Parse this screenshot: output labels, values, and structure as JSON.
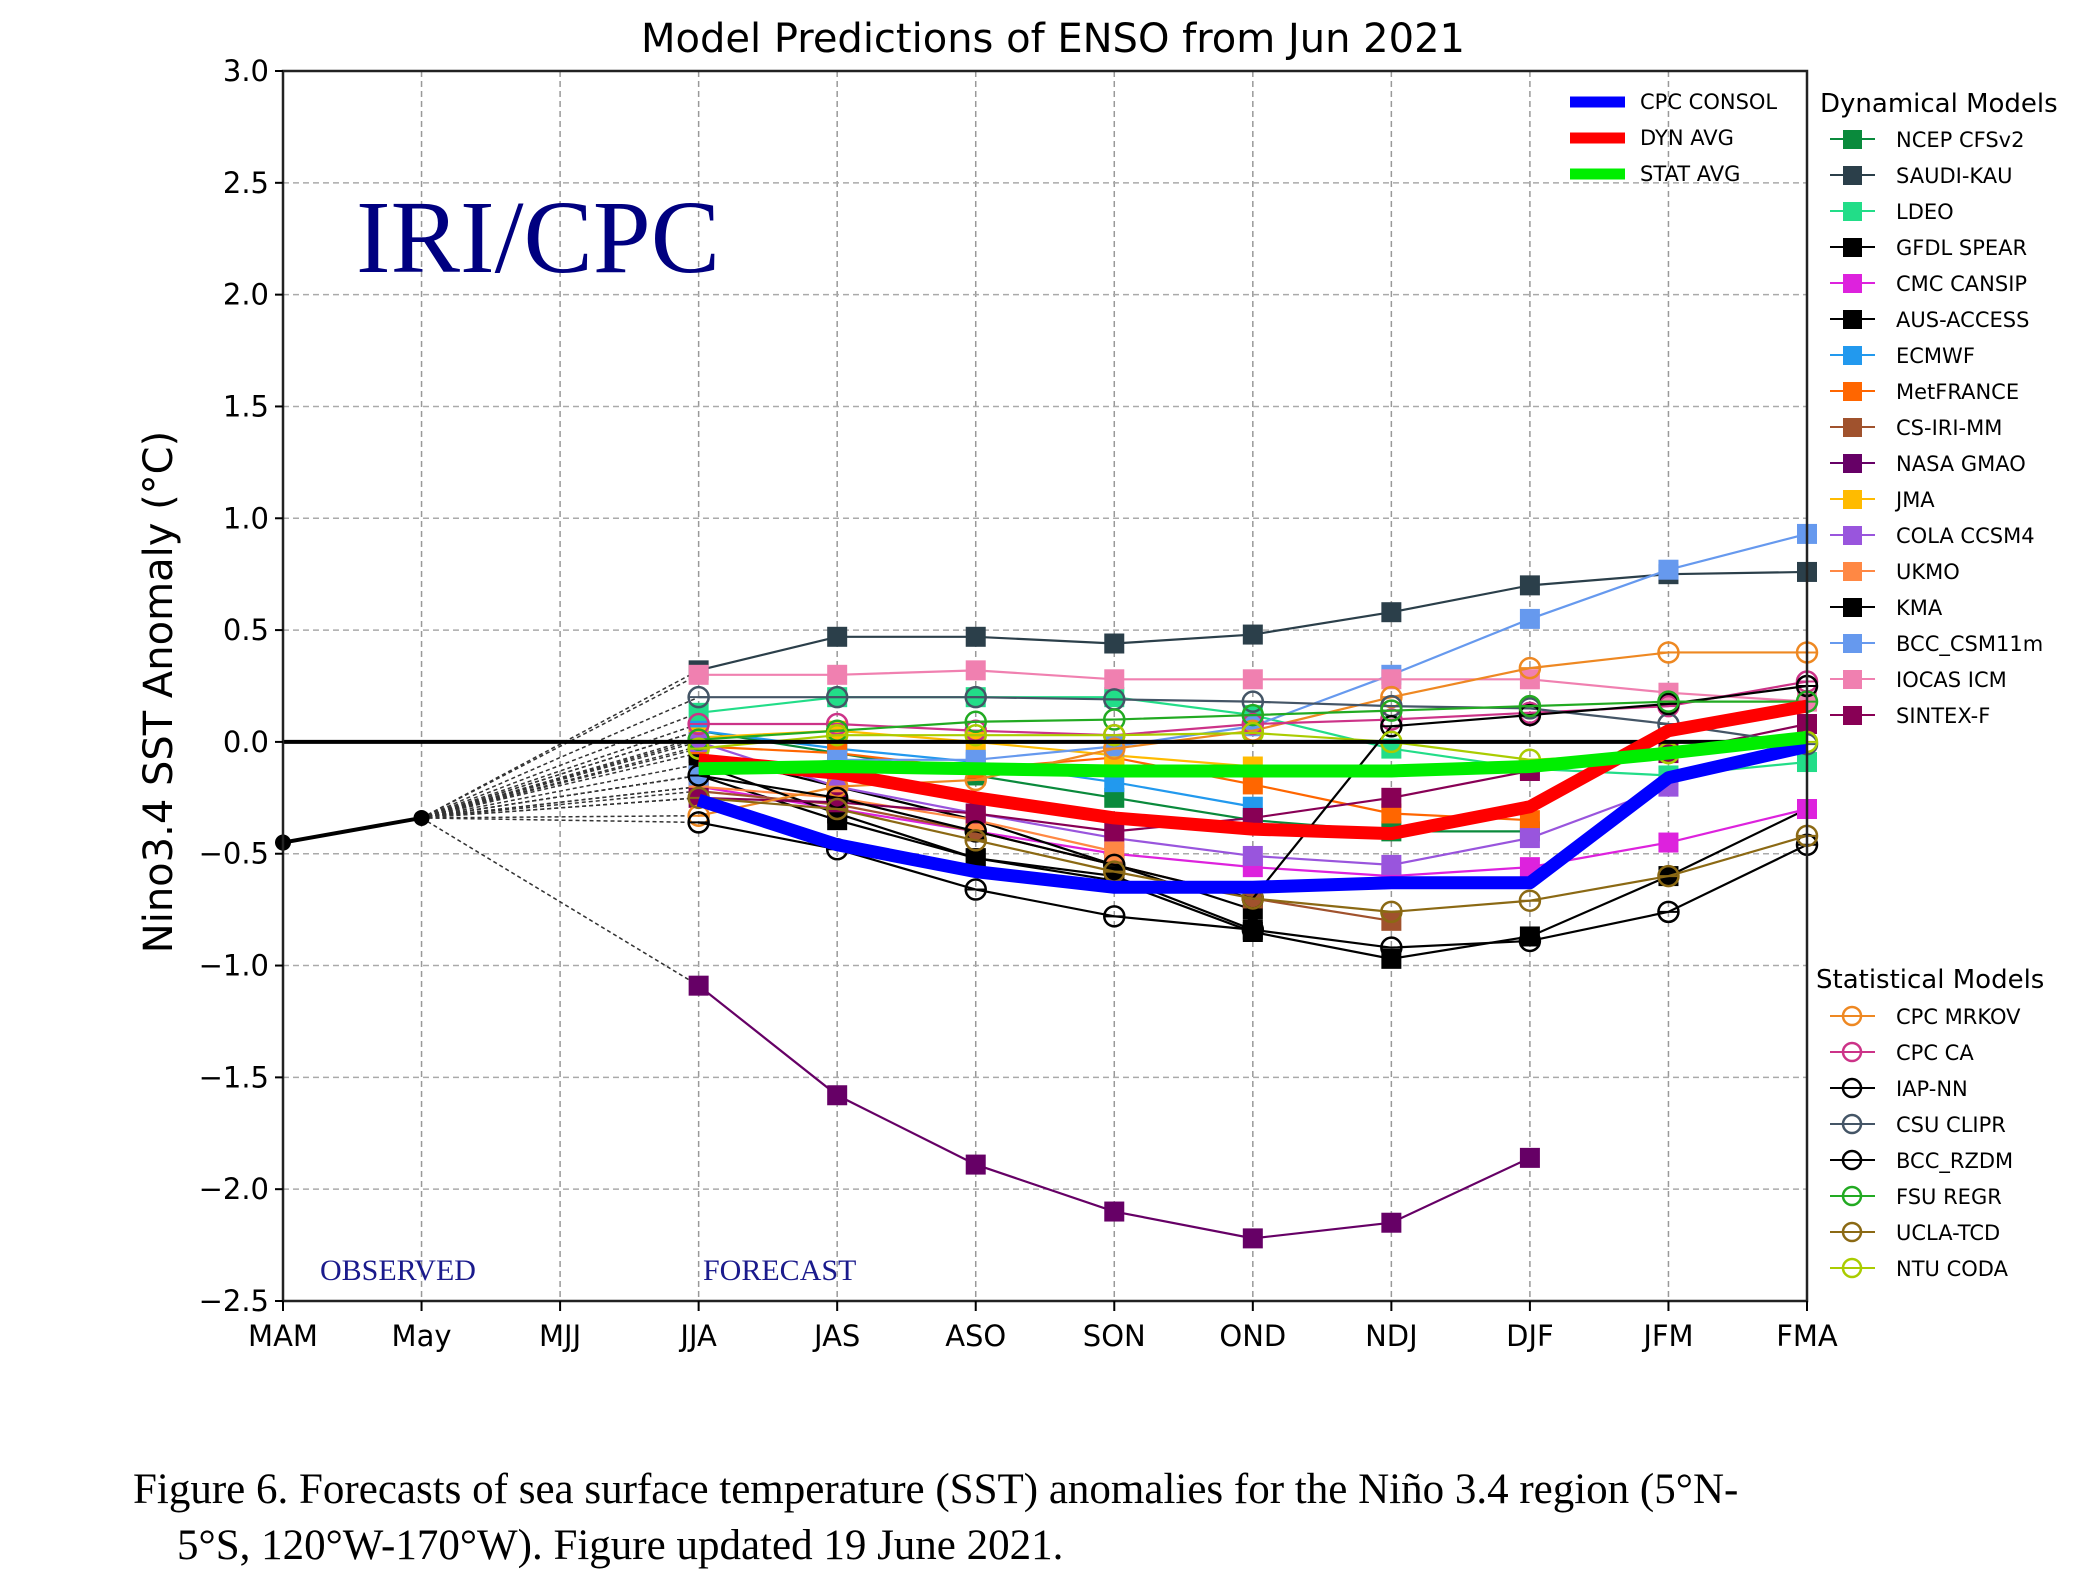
{
  "chart_data": {
    "type": "line",
    "title": "Model Predictions of ENSO from Jun 2021",
    "watermark": "IRI/CPC",
    "xlabel": "",
    "ylabel": "Nino3.4 SST Anomaly (°C)",
    "x": [
      "MAM",
      "May",
      "MJJ",
      "JJA",
      "JAS",
      "ASO",
      "SON",
      "OND",
      "NDJ",
      "DJF",
      "JFM",
      "FMA"
    ],
    "ylim": [
      -2.5,
      3.0
    ],
    "yticks": [
      -2.5,
      -2.0,
      -1.5,
      -1.0,
      -0.5,
      0.0,
      0.5,
      1.0,
      1.5,
      2.0,
      2.5,
      3.0
    ],
    "ytick_labels": [
      "−2.5",
      "−2.0",
      "−1.5",
      "−1.0",
      "−0.5",
      "0.0",
      "0.5",
      "1.0",
      "1.5",
      "2.0",
      "2.5",
      "3.0"
    ],
    "grid": true,
    "zero_line": true,
    "annotations": {
      "observed": "OBSERVED",
      "forecast": "FORECAST"
    },
    "observed": {
      "name": "Observed",
      "color": "#000000",
      "x_index": [
        0,
        1
      ],
      "values": [
        -0.45,
        -0.34
      ]
    },
    "summary_legend": {
      "placement": "top-right inside",
      "items": [
        {
          "name": "CPC CONSOL",
          "color": "#0000ff"
        },
        {
          "name": "DYN AVG",
          "color": "#ff0000"
        },
        {
          "name": "STAT AVG",
          "color": "#00ee00"
        }
      ]
    },
    "summary_series": [
      {
        "name": "CPC CONSOL",
        "color": "#0000ff",
        "start": 3,
        "values": [
          -0.26,
          -0.46,
          -0.58,
          -0.65,
          -0.65,
          -0.63,
          -0.63,
          -0.16,
          -0.02
        ]
      },
      {
        "name": "DYN AVG",
        "color": "#ff0000",
        "start": 3,
        "values": [
          -0.08,
          -0.14,
          -0.25,
          -0.34,
          -0.39,
          -0.41,
          -0.29,
          0.05,
          0.16
        ]
      },
      {
        "name": "STAT AVG",
        "color": "#00ee00",
        "start": 3,
        "values": [
          -0.12,
          -0.11,
          -0.12,
          -0.13,
          -0.13,
          -0.13,
          -0.11,
          -0.05,
          0.02
        ]
      }
    ],
    "dynamical_models_title": "Dynamical Models",
    "dynamical_models": [
      {
        "name": "NCEP CFSv2",
        "color": "#0a8a3c",
        "start": 3,
        "values": [
          0.05,
          -0.05,
          -0.15,
          -0.25,
          -0.35,
          -0.4,
          -0.4,
          null,
          null
        ]
      },
      {
        "name": "SAUDI-KAU",
        "color": "#2b3f4a",
        "start": 3,
        "values": [
          0.32,
          0.47,
          0.47,
          0.44,
          0.48,
          0.58,
          0.7,
          0.75,
          0.76
        ]
      },
      {
        "name": "LDEO",
        "color": "#22dd88",
        "start": 3,
        "values": [
          0.13,
          0.2,
          0.2,
          0.2,
          0.12,
          -0.03,
          -0.12,
          -0.15,
          -0.09
        ]
      },
      {
        "name": "GFDL SPEAR",
        "color": "#000000",
        "start": 3,
        "values": [
          -0.15,
          -0.35,
          -0.52,
          -0.62,
          -0.85,
          -0.97,
          -0.87,
          -0.6,
          -0.3
        ]
      },
      {
        "name": "CMC CANSIP",
        "color": "#dd22dd",
        "start": 3,
        "values": [
          -0.2,
          -0.3,
          -0.4,
          -0.5,
          -0.56,
          -0.6,
          -0.56,
          -0.45,
          -0.3
        ]
      },
      {
        "name": "AUS-ACCESS",
        "color": "#000000",
        "start": 3,
        "values": [
          -0.05,
          -0.2,
          -0.35,
          -0.55,
          -0.75,
          null,
          null,
          null,
          null
        ]
      },
      {
        "name": "ECMWF",
        "color": "#2299ee",
        "start": 3,
        "values": [
          0.05,
          -0.03,
          -0.09,
          -0.18,
          -0.29,
          null,
          null,
          null,
          null
        ]
      },
      {
        "name": "MetFRANCE",
        "color": "#ff6600",
        "start": 3,
        "values": [
          -0.02,
          -0.05,
          -0.12,
          -0.07,
          -0.19,
          -0.32,
          -0.35,
          null,
          null
        ]
      },
      {
        "name": "CS-IRI-MM",
        "color": "#a0522d",
        "start": 3,
        "values": [
          -0.22,
          -0.28,
          -0.4,
          -0.55,
          -0.7,
          -0.8,
          null,
          null,
          null
        ]
      },
      {
        "name": "NASA GMAO",
        "color": "#660066",
        "start": 3,
        "values": [
          -1.09,
          -1.58,
          -1.89,
          -2.1,
          -2.22,
          -2.15,
          -1.86,
          null,
          null
        ]
      },
      {
        "name": "JMA",
        "color": "#ffbb00",
        "start": 3,
        "values": [
          0.02,
          0.05,
          0.0,
          -0.06,
          -0.11,
          null,
          null,
          null,
          null
        ]
      },
      {
        "name": "COLA CCSM4",
        "color": "#9955dd",
        "start": 3,
        "values": [
          0.0,
          -0.2,
          -0.32,
          -0.43,
          -0.51,
          -0.55,
          -0.43,
          -0.2,
          null
        ]
      },
      {
        "name": "UKMO",
        "color": "#ff8844",
        "start": 3,
        "values": [
          -0.2,
          -0.25,
          -0.35,
          -0.49,
          null,
          null,
          null,
          null,
          null
        ]
      },
      {
        "name": "KMA",
        "color": "#000000",
        "start": 3,
        "values": [
          -0.1,
          -0.32,
          -0.52,
          -0.6,
          -0.84,
          null,
          null,
          null,
          null
        ]
      },
      {
        "name": "BCC_CSM11m",
        "color": "#6699ee",
        "start": 3,
        "values": [
          -0.15,
          -0.08,
          -0.08,
          -0.02,
          0.07,
          0.3,
          0.55,
          0.77,
          0.93
        ]
      },
      {
        "name": "IOCAS ICM",
        "color": "#f080b0",
        "start": 3,
        "values": [
          0.3,
          0.3,
          0.32,
          0.28,
          0.28,
          0.28,
          0.28,
          0.22,
          0.18
        ]
      },
      {
        "name": "SINTEX-F",
        "color": "#880055",
        "start": 3,
        "values": [
          -0.25,
          -0.27,
          -0.32,
          -0.4,
          -0.34,
          -0.25,
          -0.13,
          -0.05,
          0.08
        ]
      }
    ],
    "statistical_models_title": "Statistical Models",
    "statistical_models": [
      {
        "name": "CPC MRKOV",
        "color": "#ee8822",
        "start": 3,
        "values": [
          -0.33,
          -0.2,
          -0.17,
          -0.03,
          0.05,
          0.2,
          0.33,
          0.4,
          0.4
        ]
      },
      {
        "name": "CPC CA",
        "color": "#cc3388",
        "start": 3,
        "values": [
          0.08,
          0.08,
          0.05,
          0.03,
          0.08,
          0.1,
          0.13,
          0.16,
          0.27
        ]
      },
      {
        "name": "IAP-NN",
        "color": "#000000",
        "start": 3,
        "values": [
          -0.36,
          -0.48,
          -0.66,
          -0.78,
          -0.84,
          -0.92,
          -0.89,
          -0.76,
          -0.46
        ]
      },
      {
        "name": "CSU CLIPR",
        "color": "#445566",
        "start": 3,
        "values": [
          0.2,
          0.2,
          0.2,
          0.19,
          0.18,
          0.16,
          0.15,
          0.08,
          -0.01
        ]
      },
      {
        "name": "BCC_RZDM",
        "color": "#000000",
        "start": 3,
        "values": [
          -0.15,
          -0.25,
          -0.4,
          -0.55,
          -0.7,
          0.07,
          0.12,
          0.17,
          0.25
        ]
      },
      {
        "name": "FSU REGR",
        "color": "#22aa22",
        "start": 3,
        "values": [
          0.01,
          0.05,
          0.09,
          0.1,
          0.12,
          0.14,
          0.16,
          0.18,
          0.18
        ]
      },
      {
        "name": "UCLA-TCD",
        "color": "#8b6914",
        "start": 3,
        "values": [
          -0.25,
          -0.3,
          -0.44,
          -0.58,
          -0.7,
          -0.76,
          -0.71,
          -0.6,
          -0.42
        ]
      },
      {
        "name": "NTU CODA",
        "color": "#aacc00",
        "start": 3,
        "values": [
          -0.03,
          0.03,
          0.03,
          0.03,
          0.04,
          0.0,
          -0.08,
          -0.05,
          0.0
        ]
      }
    ]
  },
  "caption": {
    "line1": "Figure  6. Forecasts of sea surface temperature (SST) anomalies  for the Niño 3.4 region (5°N-",
    "line2": "5°S, 120°W-170°W).  Figure  updated 19 June 2021."
  }
}
